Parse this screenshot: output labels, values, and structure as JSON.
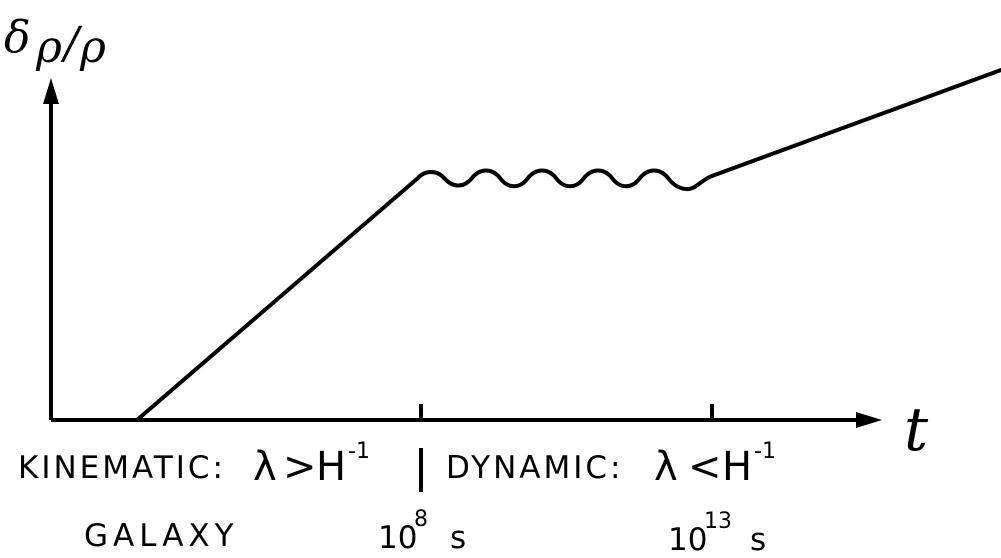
{
  "y_axis": {
    "label_parts": {
      "delta": "δ",
      "rho1": "ρ",
      "slash": "/",
      "rho2": "ρ"
    }
  },
  "x_axis": {
    "label": "t",
    "ticks": [
      {
        "base": "10",
        "exponent": "8",
        "unit": "s"
      },
      {
        "base": "10",
        "exponent": "13",
        "unit": "s"
      }
    ]
  },
  "regimes": {
    "kinematic": {
      "label": "KINEMATIC:",
      "relation": "λ",
      "comparator": ">",
      "scale": "H",
      "exponent": "-1"
    },
    "dynamic": {
      "label": "DYNAMIC:",
      "relation": "λ",
      "comparator": "<",
      "scale": "H",
      "exponent": "-1"
    }
  },
  "object_label": "GALAXY"
}
